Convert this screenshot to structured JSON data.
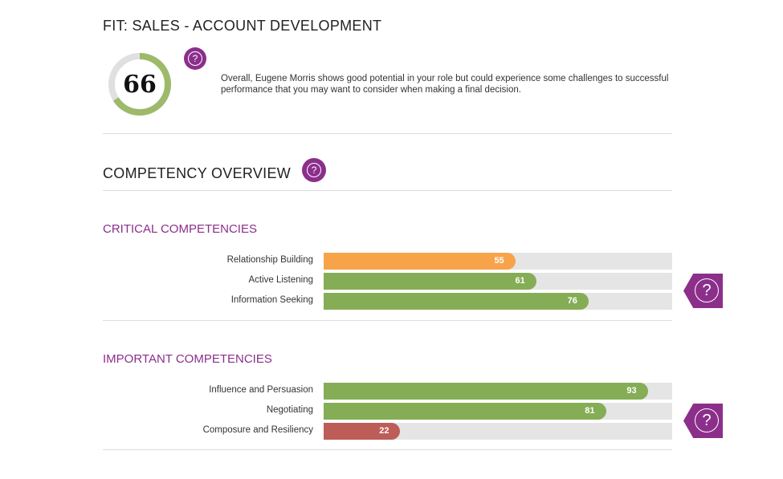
{
  "fit": {
    "title": "FIT: SALES - ACCOUNT DEVELOPMENT",
    "score": 66,
    "summary": "Overall, Eugene Morris shows good potential in your role but could experience some challenges to successful performance that you may want to consider when making a final decision.",
    "help_icon": "?"
  },
  "overview": {
    "title": "COMPETENCY OVERVIEW",
    "help_icon": "?"
  },
  "colors": {
    "green": "#84ad55",
    "orange": "#f7a34a",
    "red": "#bd5d57",
    "purple": "#8b2f8b",
    "track": "#e5e5e5"
  },
  "critical": {
    "title": "CRITICAL COMPETENCIES",
    "help_icon": "?",
    "items": [
      {
        "label": "Relationship Building",
        "value": 55,
        "color": "#f7a34a"
      },
      {
        "label": "Active Listening",
        "value": 61,
        "color": "#84ad55"
      },
      {
        "label": "Information Seeking",
        "value": 76,
        "color": "#84ad55"
      }
    ]
  },
  "important": {
    "title": "IMPORTANT COMPETENCIES",
    "help_icon": "?",
    "items": [
      {
        "label": "Influence and Persuasion",
        "value": 93,
        "color": "#84ad55"
      },
      {
        "label": "Negotiating",
        "value": 81,
        "color": "#84ad55"
      },
      {
        "label": "Composure and Resiliency",
        "value": 22,
        "color": "#bd5d57"
      }
    ]
  }
}
